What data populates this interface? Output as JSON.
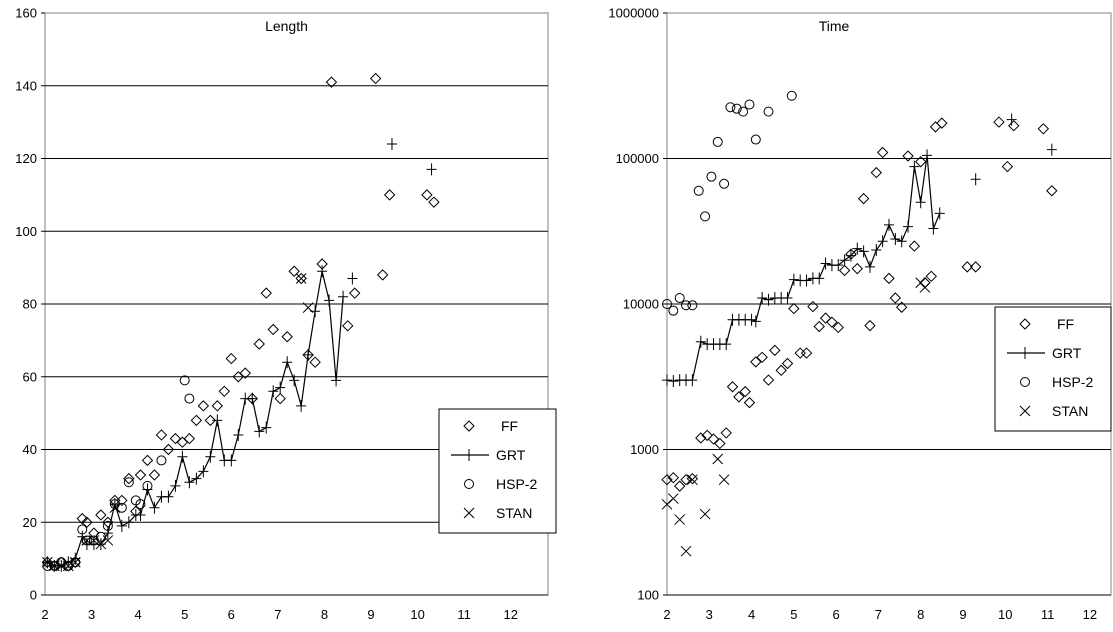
{
  "chart_data": [
    {
      "type": "scatter",
      "title": "Length",
      "xlabel": "",
      "ylabel": "",
      "xlim": [
        2,
        12.8
      ],
      "ylim": [
        0,
        160
      ],
      "yscale": "linear",
      "x_ticks": [
        "2",
        "3",
        "4",
        "5",
        "6",
        "7",
        "8",
        "9",
        "10",
        "11",
        "12"
      ],
      "y_ticks": [
        "0",
        "20",
        "40",
        "60",
        "80",
        "100",
        "120",
        "140",
        "160"
      ],
      "grid": "horizontal",
      "legend": {
        "position": "right",
        "entries": [
          "FF",
          "GRT",
          "HSP-2",
          "STAN"
        ]
      },
      "series": [
        {
          "name": "FF",
          "marker": "diamond",
          "points": [
            [
              2.05,
              9
            ],
            [
              2.2,
              8
            ],
            [
              2.35,
              9
            ],
            [
              2.5,
              8
            ],
            [
              2.65,
              9
            ],
            [
              2.8,
              21
            ],
            [
              2.9,
              20
            ],
            [
              3.05,
              17
            ],
            [
              3.2,
              22
            ],
            [
              3.35,
              20
            ],
            [
              3.5,
              26
            ],
            [
              3.65,
              26
            ],
            [
              3.8,
              32
            ],
            [
              3.95,
              23
            ],
            [
              4.05,
              33
            ],
            [
              4.2,
              37
            ],
            [
              4.35,
              33
            ],
            [
              4.5,
              44
            ],
            [
              4.65,
              40
            ],
            [
              4.8,
              43
            ],
            [
              4.95,
              42
            ],
            [
              5.1,
              43
            ],
            [
              5.25,
              48
            ],
            [
              5.4,
              52
            ],
            [
              5.55,
              48
            ],
            [
              5.7,
              52
            ],
            [
              5.85,
              56
            ],
            [
              6.0,
              65
            ],
            [
              6.15,
              60
            ],
            [
              6.3,
              61
            ],
            [
              6.45,
              54
            ],
            [
              6.6,
              69
            ],
            [
              6.75,
              83
            ],
            [
              6.9,
              73
            ],
            [
              7.05,
              54
            ],
            [
              7.2,
              71
            ],
            [
              7.35,
              89
            ],
            [
              7.5,
              87
            ],
            [
              7.65,
              66
            ],
            [
              7.8,
              64
            ],
            [
              7.95,
              91
            ],
            [
              8.15,
              141
            ],
            [
              8.5,
              74
            ],
            [
              8.65,
              83
            ],
            [
              9.1,
              142
            ],
            [
              9.25,
              88
            ],
            [
              9.4,
              110
            ],
            [
              10.2,
              110
            ],
            [
              10.35,
              108
            ]
          ]
        },
        {
          "name": "GRT",
          "marker": "plus",
          "connected": true,
          "points": [
            [
              2.05,
              9
            ],
            [
              2.2,
              8
            ],
            [
              2.35,
              8
            ],
            [
              2.5,
              9
            ],
            [
              2.65,
              10
            ],
            [
              2.8,
              16
            ],
            [
              2.9,
              14
            ],
            [
              3.05,
              14
            ],
            [
              3.2,
              14
            ],
            [
              3.35,
              17
            ],
            [
              3.5,
              25
            ],
            [
              3.65,
              19
            ],
            [
              3.8,
              20
            ],
            [
              3.95,
              22
            ],
            [
              4.05,
              22
            ],
            [
              4.2,
              29
            ],
            [
              4.35,
              24
            ],
            [
              4.5,
              27
            ],
            [
              4.65,
              27
            ],
            [
              4.8,
              30
            ],
            [
              4.95,
              38
            ],
            [
              5.1,
              31
            ],
            [
              5.25,
              32
            ],
            [
              5.4,
              34
            ],
            [
              5.55,
              38
            ],
            [
              5.7,
              48
            ],
            [
              5.85,
              37
            ],
            [
              6.0,
              37
            ],
            [
              6.15,
              44
            ],
            [
              6.3,
              54
            ],
            [
              6.45,
              54
            ],
            [
              6.6,
              45
            ],
            [
              6.75,
              46
            ],
            [
              6.9,
              56
            ],
            [
              7.05,
              57
            ],
            [
              7.2,
              64
            ],
            [
              7.35,
              59
            ],
            [
              7.5,
              52
            ],
            [
              7.65,
              66
            ],
            [
              7.8,
              78
            ],
            [
              7.95,
              89
            ],
            [
              8.1,
              81
            ],
            [
              8.25,
              59
            ],
            [
              8.4,
              82
            ]
          ],
          "unconnected_points": [
            [
              8.6,
              87
            ],
            [
              9.45,
              124
            ],
            [
              10.3,
              117
            ]
          ]
        },
        {
          "name": "HSP-2",
          "marker": "circle",
          "points": [
            [
              2.05,
              8
            ],
            [
              2.2,
              8
            ],
            [
              2.35,
              9
            ],
            [
              2.5,
              8
            ],
            [
              2.65,
              9
            ],
            [
              2.8,
              18
            ],
            [
              2.9,
              15
            ],
            [
              3.05,
              15
            ],
            [
              3.2,
              16
            ],
            [
              3.35,
              19
            ],
            [
              3.5,
              25
            ],
            [
              3.65,
              24
            ],
            [
              3.8,
              31
            ],
            [
              3.95,
              26
            ],
            [
              4.05,
              25
            ],
            [
              4.2,
              30
            ],
            [
              4.5,
              37
            ],
            [
              5.0,
              59
            ],
            [
              5.1,
              54
            ]
          ]
        },
        {
          "name": "STAN",
          "marker": "x",
          "points": [
            [
              2.05,
              9
            ],
            [
              2.2,
              8
            ],
            [
              2.35,
              8
            ],
            [
              2.5,
              8
            ],
            [
              2.65,
              9
            ],
            [
              2.9,
              15
            ],
            [
              3.05,
              15
            ],
            [
              3.2,
              14
            ],
            [
              3.35,
              15
            ],
            [
              3.5,
              24
            ],
            [
              7.5,
              87
            ],
            [
              7.65,
              79
            ]
          ]
        }
      ]
    },
    {
      "type": "scatter",
      "title": "Time",
      "xlabel": "",
      "ylabel": "",
      "xlim": [
        2,
        12.5
      ],
      "ylim": [
        100,
        1000000
      ],
      "yscale": "log",
      "x_ticks": [
        "2",
        "3",
        "4",
        "5",
        "6",
        "7",
        "8",
        "9",
        "10",
        "11",
        "12"
      ],
      "y_ticks": [
        "100",
        "1000",
        "10000",
        "100000",
        "1000000"
      ],
      "grid": "horizontal",
      "legend": {
        "position": "right",
        "entries": [
          "FF",
          "GRT",
          "HSP-2",
          "STAN"
        ]
      },
      "series": [
        {
          "name": "FF",
          "marker": "diamond",
          "points": [
            [
              2.0,
              620
            ],
            [
              2.15,
              640
            ],
            [
              2.3,
              560
            ],
            [
              2.45,
              620
            ],
            [
              2.6,
              630
            ],
            [
              2.8,
              1200
            ],
            [
              2.95,
              1250
            ],
            [
              3.1,
              1180
            ],
            [
              3.25,
              1100
            ],
            [
              3.4,
              1300
            ],
            [
              3.55,
              2700
            ],
            [
              3.7,
              2300
            ],
            [
              3.85,
              2500
            ],
            [
              3.95,
              2100
            ],
            [
              4.1,
              4000
            ],
            [
              4.25,
              4300
            ],
            [
              4.4,
              3000
            ],
            [
              4.55,
              4800
            ],
            [
              4.7,
              3500
            ],
            [
              4.85,
              3900
            ],
            [
              5.0,
              9300
            ],
            [
              5.15,
              4600
            ],
            [
              5.3,
              4600
            ],
            [
              5.45,
              9600
            ],
            [
              5.6,
              7000
            ],
            [
              5.75,
              8000
            ],
            [
              5.9,
              7500
            ],
            [
              6.05,
              6900
            ],
            [
              6.2,
              17000
            ],
            [
              6.35,
              22000
            ],
            [
              6.5,
              17500
            ],
            [
              6.65,
              53000
            ],
            [
              6.8,
              7100
            ],
            [
              6.95,
              80000
            ],
            [
              7.1,
              110000
            ],
            [
              7.25,
              15000
            ],
            [
              7.4,
              11000
            ],
            [
              7.55,
              9500
            ],
            [
              7.7,
              104000
            ],
            [
              7.85,
              25000
            ],
            [
              8.0,
              95000
            ],
            [
              8.1,
              14000
            ],
            [
              8.25,
              15500
            ],
            [
              8.35,
              165000
            ],
            [
              8.5,
              175000
            ],
            [
              9.1,
              18000
            ],
            [
              9.3,
              18000
            ],
            [
              9.85,
              178000
            ],
            [
              10.05,
              88000
            ],
            [
              10.2,
              168000
            ],
            [
              10.9,
              160000
            ],
            [
              11.1,
              60000
            ]
          ]
        },
        {
          "name": "GRT",
          "marker": "plus",
          "connected": true,
          "points": [
            [
              2.0,
              3000
            ],
            [
              2.15,
              2950
            ],
            [
              2.3,
              3000
            ],
            [
              2.45,
              3000
            ],
            [
              2.6,
              3000
            ],
            [
              2.8,
              5500
            ],
            [
              2.95,
              5300
            ],
            [
              3.1,
              5300
            ],
            [
              3.25,
              5300
            ],
            [
              3.4,
              5300
            ],
            [
              3.55,
              7800
            ],
            [
              3.7,
              7800
            ],
            [
              3.85,
              7800
            ],
            [
              4.0,
              7800
            ],
            [
              4.1,
              7600
            ],
            [
              4.25,
              11000
            ],
            [
              4.4,
              10700
            ],
            [
              4.55,
              11000
            ],
            [
              4.7,
              11000
            ],
            [
              4.85,
              11000
            ],
            [
              5.0,
              14700
            ],
            [
              5.15,
              14500
            ],
            [
              5.3,
              14500
            ],
            [
              5.45,
              15000
            ],
            [
              5.6,
              15000
            ],
            [
              5.75,
              19000
            ],
            [
              5.9,
              18500
            ],
            [
              6.05,
              18500
            ],
            [
              6.2,
              20000
            ],
            [
              6.35,
              21500
            ],
            [
              6.5,
              24000
            ],
            [
              6.65,
              23000
            ],
            [
              6.8,
              18000
            ],
            [
              6.95,
              23500
            ],
            [
              7.1,
              27000
            ],
            [
              7.25,
              35000
            ],
            [
              7.4,
              28000
            ],
            [
              7.55,
              27000
            ],
            [
              7.7,
              34000
            ],
            [
              7.85,
              88000
            ],
            [
              8.0,
              50000
            ],
            [
              8.15,
              105000
            ],
            [
              8.3,
              33000
            ],
            [
              8.45,
              42000
            ]
          ],
          "unconnected_points": [
            [
              9.3,
              72000
            ],
            [
              10.15,
              185000
            ],
            [
              11.1,
              115000
            ]
          ]
        },
        {
          "name": "HSP-2",
          "marker": "circle",
          "points": [
            [
              2.0,
              10000
            ],
            [
              2.15,
              9000
            ],
            [
              2.3,
              11000
            ],
            [
              2.45,
              9800
            ],
            [
              2.6,
              9800
            ],
            [
              2.75,
              60000
            ],
            [
              2.9,
              40000
            ],
            [
              3.05,
              75000
            ],
            [
              3.2,
              130000
            ],
            [
              3.35,
              67000
            ],
            [
              3.5,
              225000
            ],
            [
              3.65,
              220000
            ],
            [
              3.8,
              210000
            ],
            [
              3.95,
              235000
            ],
            [
              4.1,
              135000
            ],
            [
              4.4,
              210000
            ],
            [
              4.95,
              270000
            ]
          ]
        },
        {
          "name": "STAN",
          "marker": "x",
          "points": [
            [
              2.0,
              420
            ],
            [
              2.15,
              460
            ],
            [
              2.3,
              330
            ],
            [
              2.45,
              200
            ],
            [
              2.6,
              620
            ],
            [
              2.9,
              360
            ],
            [
              3.2,
              860
            ],
            [
              3.35,
              620
            ],
            [
              8.0,
              14000
            ],
            [
              8.1,
              13000
            ]
          ]
        }
      ]
    }
  ]
}
